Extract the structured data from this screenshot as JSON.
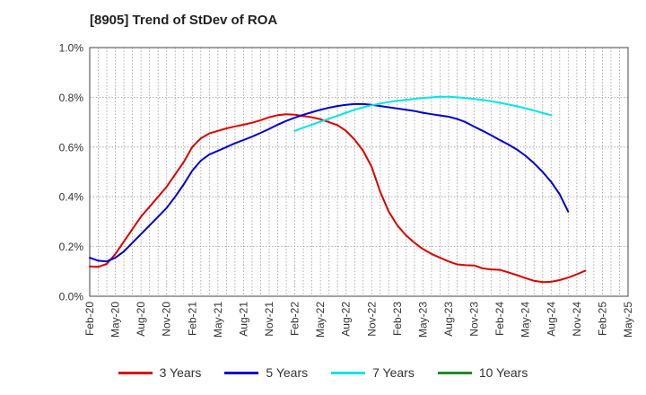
{
  "title": "[8905]  Trend of StDev of ROA",
  "chart_data": {
    "type": "line",
    "title": "[8905]  Trend of StDev of ROA",
    "xlabel": "",
    "ylabel": "",
    "ylim": [
      0,
      1.0
    ],
    "y_ticks": [
      "0.0%",
      "0.2%",
      "0.4%",
      "0.6%",
      "0.8%",
      "1.0%"
    ],
    "y_tick_values": [
      0,
      0.2,
      0.4,
      0.6,
      0.8,
      1.0
    ],
    "x_ticks": [
      "Feb-20",
      "May-20",
      "Aug-20",
      "Nov-20",
      "Feb-21",
      "May-21",
      "Aug-21",
      "Nov-21",
      "Feb-22",
      "May-22",
      "Aug-22",
      "Nov-22",
      "Feb-23",
      "May-23",
      "Aug-23",
      "Nov-23",
      "Feb-24",
      "May-24",
      "Aug-24",
      "Nov-24",
      "Feb-25",
      "May-25"
    ],
    "grid": true,
    "legend_position": "bottom",
    "series": [
      {
        "name": "3 Years",
        "color": "#dd0000",
        "start": "Feb-20",
        "values": [
          0.12,
          0.118,
          0.13,
          0.17,
          0.22,
          0.27,
          0.32,
          0.36,
          0.4,
          0.44,
          0.49,
          0.54,
          0.6,
          0.635,
          0.655,
          0.665,
          0.675,
          0.683,
          0.69,
          0.698,
          0.708,
          0.72,
          0.728,
          0.732,
          0.73,
          0.725,
          0.72,
          0.712,
          0.7,
          0.688,
          0.665,
          0.63,
          0.585,
          0.52,
          0.42,
          0.34,
          0.285,
          0.245,
          0.215,
          0.19,
          0.17,
          0.155,
          0.14,
          0.128,
          0.125,
          0.124,
          0.112,
          0.108,
          0.106,
          0.096,
          0.085,
          0.073,
          0.062,
          0.057,
          0.058,
          0.065,
          0.075,
          0.088,
          0.103
        ]
      },
      {
        "name": "5 Years",
        "color": "#0000cc",
        "start": "Feb-20",
        "values": [
          0.155,
          0.143,
          0.14,
          0.155,
          0.18,
          0.215,
          0.25,
          0.285,
          0.32,
          0.355,
          0.4,
          0.45,
          0.505,
          0.545,
          0.57,
          0.585,
          0.6,
          0.615,
          0.628,
          0.642,
          0.657,
          0.673,
          0.69,
          0.705,
          0.718,
          0.73,
          0.74,
          0.75,
          0.758,
          0.765,
          0.77,
          0.773,
          0.773,
          0.77,
          0.765,
          0.76,
          0.755,
          0.75,
          0.745,
          0.738,
          0.732,
          0.727,
          0.722,
          0.713,
          0.7,
          0.682,
          0.665,
          0.647,
          0.628,
          0.61,
          0.59,
          0.565,
          0.535,
          0.5,
          0.46,
          0.41,
          0.34
        ]
      },
      {
        "name": "7 Years",
        "color": "#00e5e5",
        "start": "Feb-22",
        "values": [
          0.665,
          0.678,
          0.69,
          0.702,
          0.714,
          0.726,
          0.738,
          0.75,
          0.76,
          0.768,
          0.775,
          0.781,
          0.786,
          0.79,
          0.794,
          0.797,
          0.8,
          0.802,
          0.802,
          0.8,
          0.797,
          0.793,
          0.789,
          0.784,
          0.778,
          0.771,
          0.764,
          0.756,
          0.747,
          0.737,
          0.728
        ]
      },
      {
        "name": "10 Years",
        "color": "#228b22",
        "start": "Feb-20",
        "values": []
      }
    ]
  }
}
